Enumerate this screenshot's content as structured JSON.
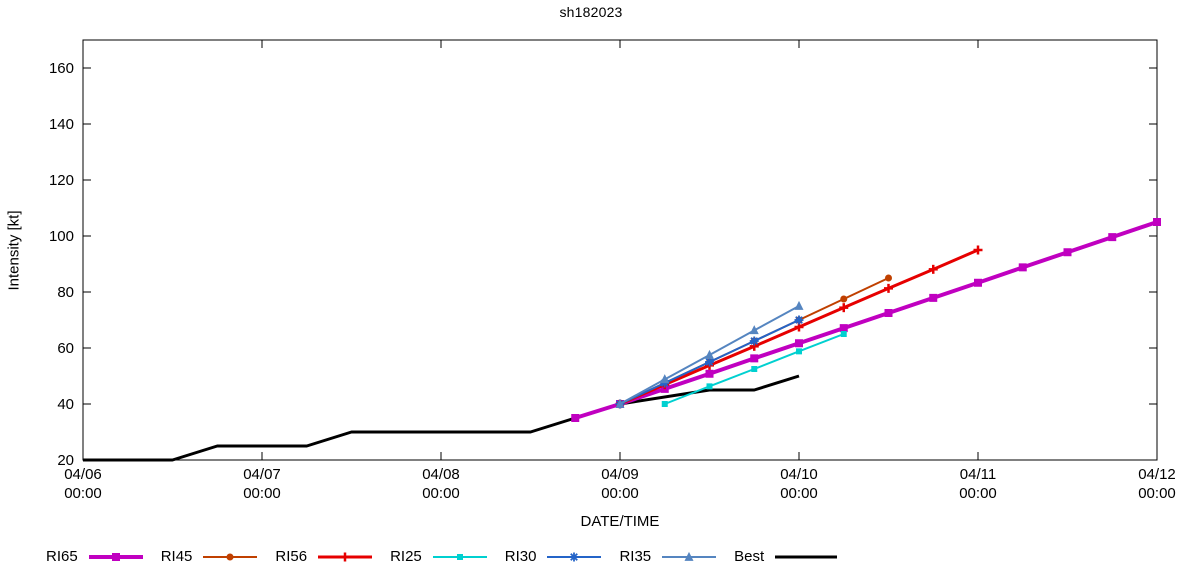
{
  "chart_data": {
    "type": "line",
    "title": "sh182023",
    "xlabel": "DATE/TIME",
    "ylabel": "Intensity [kt]",
    "ylim": [
      20,
      170
    ],
    "y_ticks": [
      20,
      40,
      60,
      80,
      100,
      120,
      140,
      160
    ],
    "x_hours_range": [
      0,
      144
    ],
    "x_unit": "hours since 04/06 00:00",
    "grid": false,
    "legend_position": "bottom",
    "x_ticks": [
      {
        "hour": 0,
        "date": "04/06",
        "time": "00:00"
      },
      {
        "hour": 24,
        "date": "04/07",
        "time": "00:00"
      },
      {
        "hour": 48,
        "date": "04/08",
        "time": "00:00"
      },
      {
        "hour": 72,
        "date": "04/09",
        "time": "00:00"
      },
      {
        "hour": 96,
        "date": "04/10",
        "time": "00:00"
      },
      {
        "hour": 120,
        "date": "04/11",
        "time": "00:00"
      },
      {
        "hour": 144,
        "date": "04/12",
        "time": "00:00"
      }
    ],
    "legend_order": [
      "RI65",
      "RI45",
      "RI56",
      "RI25",
      "RI30",
      "RI35",
      "Best"
    ],
    "series": [
      {
        "name": "Best",
        "color": "#000000",
        "width": 3,
        "marker": "none",
        "marker_size": 0,
        "points": [
          [
            0,
            20
          ],
          [
            12,
            20
          ],
          [
            18,
            25
          ],
          [
            30,
            25
          ],
          [
            36,
            30
          ],
          [
            60,
            30
          ],
          [
            66,
            35
          ],
          [
            72,
            40
          ],
          [
            84,
            45
          ],
          [
            90,
            45
          ],
          [
            96,
            50
          ]
        ]
      },
      {
        "name": "RI65",
        "color": "#c000c0",
        "width": 4,
        "marker": "square",
        "marker_size": 8,
        "points": [
          [
            66,
            35
          ],
          [
            72,
            40
          ],
          [
            78,
            45.4
          ],
          [
            84,
            50.8
          ],
          [
            90,
            56.3
          ],
          [
            96,
            61.7
          ],
          [
            102,
            67.1
          ],
          [
            108,
            72.5
          ],
          [
            114,
            77.9
          ],
          [
            120,
            83.3
          ],
          [
            126,
            88.8
          ],
          [
            132,
            94.2
          ],
          [
            138,
            99.6
          ],
          [
            144,
            105
          ]
        ]
      },
      {
        "name": "RI45",
        "color": "#c04000",
        "width": 2,
        "marker": "circle",
        "marker_size": 7,
        "points": [
          [
            72,
            40
          ],
          [
            78,
            47.5
          ],
          [
            84,
            55
          ],
          [
            90,
            62.5
          ],
          [
            96,
            70
          ],
          [
            102,
            77.5
          ],
          [
            108,
            85
          ]
        ]
      },
      {
        "name": "RI56",
        "color": "#e60000",
        "width": 3,
        "marker": "plus",
        "marker_size": 9,
        "points": [
          [
            72,
            40
          ],
          [
            78,
            46.9
          ],
          [
            84,
            53.8
          ],
          [
            90,
            60.6
          ],
          [
            96,
            67.5
          ],
          [
            102,
            74.4
          ],
          [
            108,
            81.3
          ],
          [
            114,
            88.1
          ],
          [
            120,
            95
          ]
        ]
      },
      {
        "name": "RI25",
        "color": "#00d0d0",
        "width": 2,
        "marker": "square",
        "marker_size": 6,
        "points": [
          [
            78,
            40
          ],
          [
            84,
            46.3
          ],
          [
            90,
            52.5
          ],
          [
            96,
            58.8
          ],
          [
            102,
            65
          ]
        ]
      },
      {
        "name": "RI30",
        "color": "#2464c8",
        "width": 2,
        "marker": "asterisk",
        "marker_size": 9,
        "points": [
          [
            72,
            40
          ],
          [
            78,
            47.5
          ],
          [
            84,
            55
          ],
          [
            90,
            62.5
          ],
          [
            96,
            70
          ]
        ]
      },
      {
        "name": "RI35",
        "color": "#5585c0",
        "width": 2,
        "marker": "triangle",
        "marker_size": 9,
        "points": [
          [
            72,
            40
          ],
          [
            78,
            48.8
          ],
          [
            84,
            57.5
          ],
          [
            90,
            66.3
          ],
          [
            96,
            75
          ]
        ]
      }
    ]
  }
}
